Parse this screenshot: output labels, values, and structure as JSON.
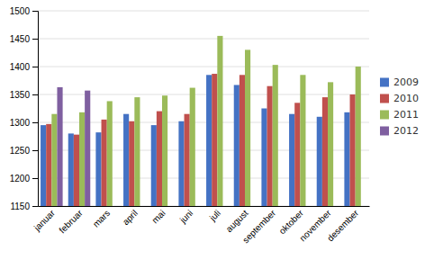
{
  "chart_data": {
    "type": "bar",
    "categories": [
      "januar",
      "februar",
      "mars",
      "april",
      "mai",
      "juni",
      "juli",
      "august",
      "september",
      "oktober",
      "november",
      "desember"
    ],
    "series": [
      {
        "name": "2009",
        "color": "#4472C4",
        "values": [
          1295,
          1280,
          1282,
          1315,
          1295,
          1302,
          1385,
          1367,
          1325,
          1315,
          1310,
          1318
        ]
      },
      {
        "name": "2010",
        "color": "#C0504D",
        "values": [
          1297,
          1278,
          1305,
          1302,
          1320,
          1315,
          1387,
          1385,
          1365,
          1335,
          1345,
          1350
        ]
      },
      {
        "name": "2011",
        "color": "#9BBB59",
        "values": [
          1315,
          1318,
          1338,
          1345,
          1348,
          1362,
          1455,
          1430,
          1403,
          1385,
          1372,
          1400
        ]
      },
      {
        "name": "2012",
        "color": "#7F5FA0",
        "values": [
          1363,
          1357,
          null,
          null,
          null,
          null,
          null,
          null,
          null,
          null,
          null,
          null
        ]
      }
    ],
    "ylim": [
      1150,
      1500
    ],
    "yticks": [
      1150,
      1200,
      1250,
      1300,
      1350,
      1400,
      1450,
      1500
    ],
    "grid": true,
    "legend": "right"
  }
}
